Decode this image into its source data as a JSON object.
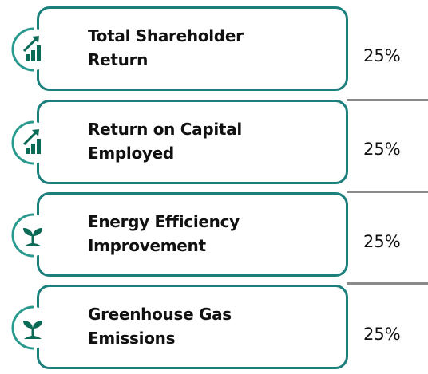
{
  "items": [
    {
      "label": "Total Shareholder Return",
      "value": "25%"
    },
    {
      "label": "Return on Capital Employed",
      "value": "25%"
    },
    {
      "label": "Energy Efficiency Improvement",
      "value": "25%"
    },
    {
      "label": "Greenhouse Gas Emissions",
      "value": "25%"
    }
  ]
}
